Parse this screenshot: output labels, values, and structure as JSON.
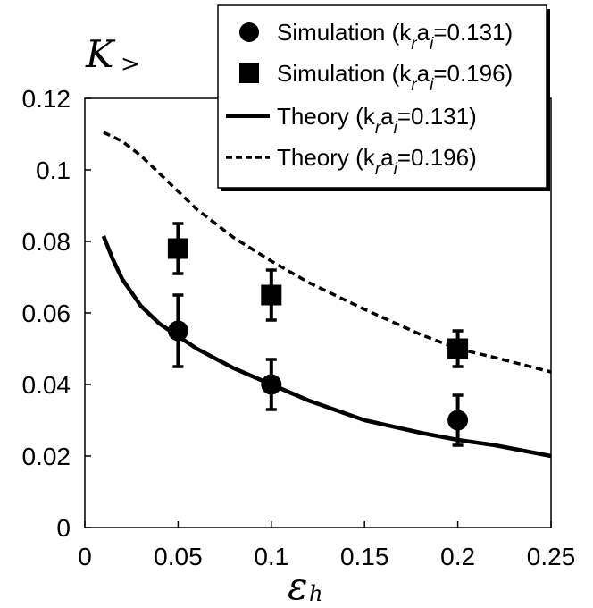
{
  "chart_data": {
    "type": "scatter",
    "ylabel_main": "K",
    "ylabel_sub": ">",
    "xlabel_main": "ε",
    "xlabel_sub": "h",
    "xlim": [
      0,
      0.25
    ],
    "ylim": [
      0,
      0.12
    ],
    "x_ticks": [
      "0",
      "0.05",
      "0.1",
      "0.15",
      "0.2",
      "0.25"
    ],
    "y_ticks": [
      "0",
      "0.02",
      "0.04",
      "0.06",
      "0.08",
      "0.1",
      "0.12"
    ],
    "legend_placement": "top-right",
    "series": [
      {
        "name": "Simulation (k_r a_i=0.131)",
        "marker": "circle",
        "x": [
          0.05,
          0.1,
          0.2
        ],
        "y": [
          0.055,
          0.04,
          0.03
        ],
        "err_low": [
          0.045,
          0.033,
          0.023
        ],
        "err_high": [
          0.065,
          0.047,
          0.037
        ]
      },
      {
        "name": "Simulation (k_r a_i=0.196)",
        "marker": "square",
        "x": [
          0.05,
          0.1,
          0.2
        ],
        "y": [
          0.078,
          0.065,
          0.05
        ],
        "err_low": [
          0.071,
          0.058,
          0.045
        ],
        "err_high": [
          0.085,
          0.072,
          0.055
        ]
      },
      {
        "name": "Theory (k_r a_i=0.131)",
        "style": "solid",
        "x": [
          0.01,
          0.015,
          0.02,
          0.03,
          0.04,
          0.05,
          0.06,
          0.08,
          0.1,
          0.12,
          0.15,
          0.18,
          0.2,
          0.22,
          0.25
        ],
        "y": [
          0.0815,
          0.075,
          0.0695,
          0.062,
          0.057,
          0.0535,
          0.05,
          0.0445,
          0.04,
          0.0355,
          0.03,
          0.0265,
          0.0245,
          0.023,
          0.02
        ]
      },
      {
        "name": "Theory (k_r a_i=0.196)",
        "style": "dashed",
        "x": [
          0.01,
          0.02,
          0.03,
          0.04,
          0.05,
          0.06,
          0.08,
          0.1,
          0.12,
          0.15,
          0.18,
          0.2,
          0.22,
          0.25
        ],
        "y": [
          0.1105,
          0.108,
          0.104,
          0.099,
          0.094,
          0.089,
          0.081,
          0.0745,
          0.0685,
          0.061,
          0.054,
          0.05,
          0.0475,
          0.0435
        ]
      }
    ],
    "legend": [
      {
        "prefix": "Simulation (k",
        "sub1": "r",
        "mid": "a",
        "sub2": "i",
        "suffix": "=0.131)",
        "marker": "circle"
      },
      {
        "prefix": "Simulation (k",
        "sub1": "r",
        "mid": "a",
        "sub2": "i",
        "suffix": "=0.196)",
        "marker": "square"
      },
      {
        "prefix": "Theory (k",
        "sub1": "r",
        "mid": "a",
        "sub2": "i",
        "suffix": "=0.131)",
        "marker": "solid-line"
      },
      {
        "prefix": "Theory (k",
        "sub1": "r",
        "mid": "a",
        "sub2": "i",
        "suffix": "=0.196)",
        "marker": "dashed-line"
      }
    ]
  }
}
